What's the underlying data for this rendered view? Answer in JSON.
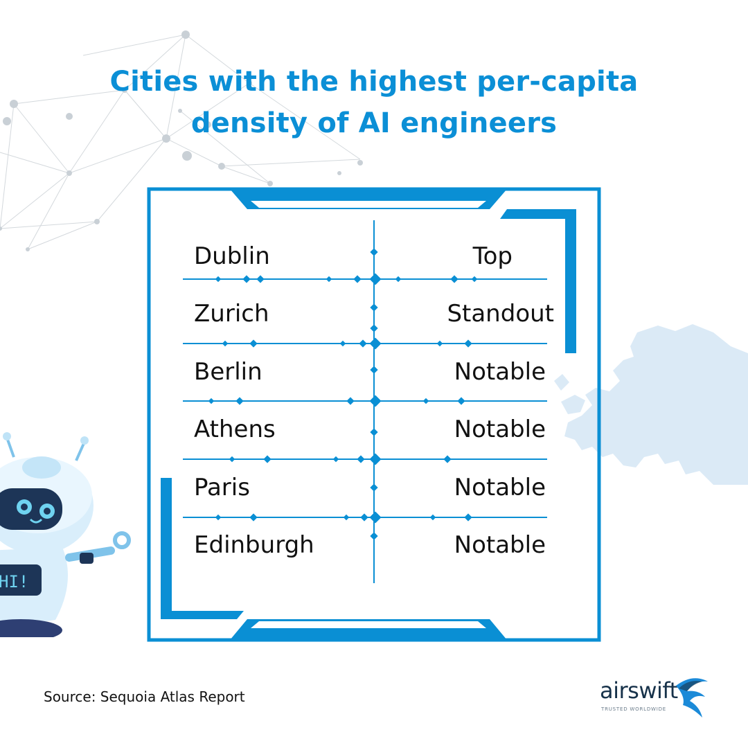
{
  "title": {
    "line1": "Cities with the highest per-capita",
    "line2": "density of AI engineers"
  },
  "table": {
    "rows": [
      {
        "city": "Dublin",
        "rating": "Top"
      },
      {
        "city": "Zurich",
        "rating": "Standout"
      },
      {
        "city": "Berlin",
        "rating": "Notable"
      },
      {
        "city": "Athens",
        "rating": "Notable"
      },
      {
        "city": "Paris",
        "rating": "Notable"
      },
      {
        "city": "Edinburgh",
        "rating": "Notable"
      }
    ]
  },
  "robot": {
    "badge": "HI!"
  },
  "footer": {
    "source": "Source: Sequoia Atlas Report",
    "logo_word": "airswift",
    "logo_tagline": "TRUSTED WORLDWIDE"
  },
  "colors": {
    "accent": "#0b8fd6",
    "frame": "#0a8fd4",
    "text": "#111111",
    "map": "#dbeaf6",
    "network": "#c9d0d6"
  }
}
